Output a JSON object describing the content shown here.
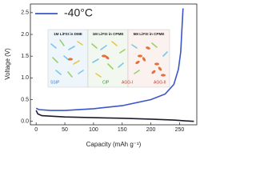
{
  "chart_data": {
    "type": "line",
    "xlabel": "Capacity (mAh g⁻¹)",
    "ylabel": "Voltage (V)",
    "xlim": [
      -10,
      280
    ],
    "ylim": [
      -0.08,
      2.7
    ],
    "xticks": [
      0,
      50,
      100,
      150,
      200,
      250
    ],
    "yticks": [
      {
        "value": 0,
        "label": "0.0"
      },
      0.5,
      {
        "value": 1,
        "label": "1.0"
      },
      1.5,
      {
        "value": 2,
        "label": "2.0"
      },
      2.5
    ],
    "series": [
      {
        "name": "-40°C",
        "color": "#3a56c9",
        "x": [
          0,
          5,
          25,
          50,
          100,
          150,
          200,
          225,
          240,
          248,
          252,
          254,
          256
        ],
        "values": [
          0.3,
          0.27,
          0.25,
          0.25,
          0.29,
          0.36,
          0.5,
          0.63,
          0.85,
          1.2,
          1.6,
          2.1,
          2.6
        ]
      },
      {
        "color": "#1c1c2c",
        "x": [
          0,
          3,
          10,
          50,
          100,
          150,
          200,
          240,
          260,
          275
        ],
        "values": [
          0.25,
          0.17,
          0.13,
          0.1,
          0.085,
          0.07,
          0.05,
          0.03,
          0.01,
          0
        ]
      }
    ],
    "annotations": [
      "1M LiFSI in DME",
      "1M LiFSI in CPME",
      "5M LiFSI in CPME",
      "SSIP",
      "CIP",
      "AGG-I",
      "AGG-II"
    ]
  }
}
